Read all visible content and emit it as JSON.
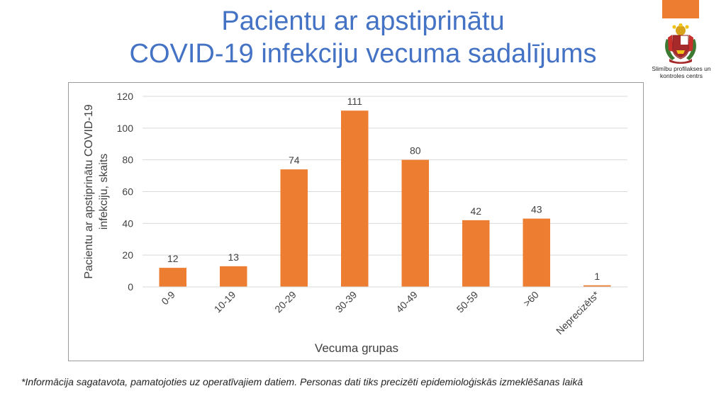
{
  "title": {
    "line1": "Pacientu ar apstiprinātu",
    "line2": "COVID-19 infekciju vecuma sadalījums"
  },
  "logo": {
    "icon": "latvia-coat-of-arms-icon",
    "line1": "Slimību profilakses un",
    "line2": "kontroles centrs"
  },
  "colors": {
    "title": "#4472c4",
    "bar": "#ed7d31",
    "accent": "#ed7d31",
    "grid": "#d9d9d9",
    "text": "#404040"
  },
  "chart_data": {
    "type": "bar",
    "categories": [
      "0-9",
      "10-19",
      "20-29",
      "30-39",
      "40-49",
      "50-59",
      ">60",
      "Neprecizēts*"
    ],
    "values": [
      12,
      13,
      74,
      111,
      80,
      42,
      43,
      1
    ],
    "data_labels": [
      "12",
      "13",
      "74",
      "111",
      "80",
      "42",
      "43",
      "1"
    ],
    "xlabel": "Vecuma grupas",
    "ylabel_line1": "Pacientu ar apstiprinātu COVID-19",
    "ylabel_line2": "infekciju, skaits",
    "ylim": [
      0,
      120
    ],
    "yticks": [
      "0",
      "20",
      "40",
      "60",
      "80",
      "100",
      "120"
    ],
    "grid": true,
    "legend": "none",
    "bar_color": "#ed7d31"
  },
  "footnote": "*Informācija sagatavota, pamatojoties uz operatīvajiem datiem. Personas dati tiks precizēti epidemioloģiskās izmeklēšanas laikā"
}
